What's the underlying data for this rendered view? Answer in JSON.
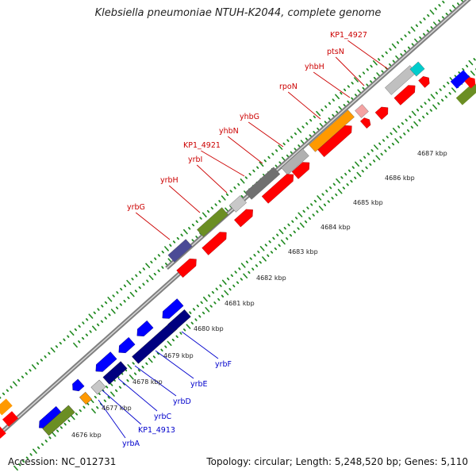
{
  "header": {
    "title": "Klebsiella pneumoniae NTUH-K2044, complete genome"
  },
  "footer": {
    "accession": "Accession: NC_012731",
    "summary": "Topology: circular; Length: 5,248,520 bp; Genes: 5,110"
  },
  "colors": {
    "forward": "#ff0000",
    "reverse": "#0000ff",
    "label_forward": "#cc0000",
    "label_reverse": "#0000cc",
    "backbone": "#808080",
    "ticks": "#228b22"
  },
  "ticks": [
    "4676 kbp",
    "4677 kbp",
    "4678 kbp",
    "4679 kbp",
    "4680 kbp",
    "4681 kbp",
    "4682 kbp",
    "4683 kbp",
    "4684 kbp",
    "4685 kbp",
    "4686 kbp",
    "4687 kbp"
  ],
  "upper_labels": [
    "yrbG",
    "yrbH",
    "yrbI",
    "KP1_4921",
    "yhbN",
    "yhbG",
    "rpoN",
    "yhbH",
    "ptsN",
    "KP1_4927"
  ],
  "lower_labels": [
    "yrbF",
    "yrbE",
    "yrbD",
    "yrbC",
    "KP1_4913",
    "yrbA"
  ]
}
